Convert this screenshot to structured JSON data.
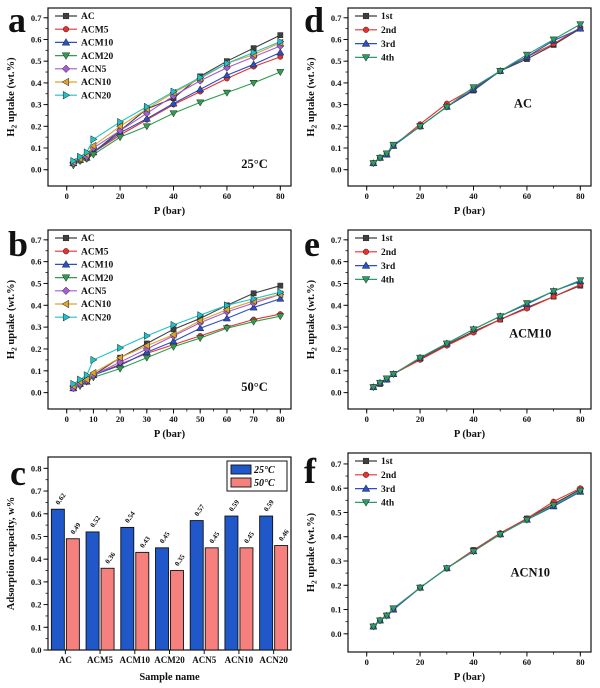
{
  "figure_name": "hydrogen-uptake-figure",
  "chart_data": [
    {
      "type": "line",
      "letter": "a",
      "xlabel": "P (bar)",
      "ylabel": [
        {
          "t": "H"
        },
        {
          "t": "2",
          "sub": true
        },
        {
          "t": " uptake (wt.%)"
        }
      ],
      "annotation": "25°C",
      "annotation_pos": [
        0.85,
        0.9
      ],
      "xlim": [
        -7,
        84
      ],
      "ylim": [
        -0.075,
        0.745
      ],
      "xticks": [
        0,
        20,
        40,
        60,
        80
      ],
      "yticks": [
        0.0,
        0.1,
        0.2,
        0.3,
        0.4,
        0.5,
        0.6,
        0.7
      ],
      "x_minor": 10,
      "y_minor": 0.05,
      "legend_pos": "top-left",
      "x": [
        2.5,
        5,
        7.5,
        10,
        20,
        30,
        40,
        50,
        60,
        70,
        80
      ],
      "series": [
        {
          "name": "AC",
          "color": "#3f3f3f",
          "marker": "square",
          "values": [
            0.03,
            0.05,
            0.06,
            0.08,
            0.18,
            0.28,
            0.33,
            0.43,
            0.5,
            0.56,
            0.62
          ]
        },
        {
          "name": "ACM5",
          "color": "#e8312e",
          "marker": "circle",
          "values": [
            0.03,
            0.04,
            0.05,
            0.08,
            0.16,
            0.23,
            0.3,
            0.36,
            0.42,
            0.475,
            0.52
          ]
        },
        {
          "name": "ACM10",
          "color": "#2b4fc8",
          "marker": "triangle-up",
          "values": [
            0.03,
            0.045,
            0.055,
            0.08,
            0.17,
            0.235,
            0.305,
            0.37,
            0.435,
            0.485,
            0.54
          ]
        },
        {
          "name": "ACM20",
          "color": "#2f9e4f",
          "marker": "triangle-down",
          "values": [
            0.02,
            0.04,
            0.05,
            0.07,
            0.15,
            0.2,
            0.26,
            0.31,
            0.355,
            0.4,
            0.45
          ]
        },
        {
          "name": "ACN5",
          "color": "#a55cd5",
          "marker": "diamond",
          "values": [
            0.03,
            0.05,
            0.06,
            0.1,
            0.18,
            0.26,
            0.34,
            0.41,
            0.47,
            0.52,
            0.57
          ]
        },
        {
          "name": "ACN10",
          "color": "#e0a32e",
          "marker": "triangle-left",
          "values": [
            0.035,
            0.05,
            0.07,
            0.11,
            0.2,
            0.28,
            0.355,
            0.42,
            0.49,
            0.53,
            0.585
          ]
        },
        {
          "name": "ACN20",
          "color": "#1ec3c9",
          "marker": "triangle-right",
          "values": [
            0.04,
            0.06,
            0.08,
            0.14,
            0.22,
            0.29,
            0.36,
            0.425,
            0.49,
            0.54,
            0.59
          ]
        }
      ]
    },
    {
      "type": "line",
      "letter": "b",
      "xlabel": "P (bar)",
      "ylabel": [
        {
          "t": "H"
        },
        {
          "t": "2",
          "sub": true
        },
        {
          "t": " uptake (wt.%)"
        }
      ],
      "annotation": "50°C",
      "annotation_pos": [
        0.85,
        0.9
      ],
      "xlim": [
        -7,
        84
      ],
      "ylim": [
        -0.075,
        0.745
      ],
      "xticks": [
        0,
        10,
        20,
        30,
        40,
        50,
        60,
        70,
        80
      ],
      "yticks": [
        0.0,
        0.1,
        0.2,
        0.3,
        0.4,
        0.5,
        0.6,
        0.7
      ],
      "x_minor": 5,
      "y_minor": 0.05,
      "legend_pos": "top-left",
      "x": [
        2.5,
        5,
        7.5,
        10,
        20,
        30,
        40,
        50,
        60,
        70,
        80
      ],
      "series": [
        {
          "name": "AC",
          "color": "#3f3f3f",
          "marker": "square",
          "values": [
            0.02,
            0.04,
            0.06,
            0.08,
            0.16,
            0.225,
            0.29,
            0.34,
            0.4,
            0.455,
            0.49
          ]
        },
        {
          "name": "ACM5",
          "color": "#e8312e",
          "marker": "circle",
          "values": [
            0.02,
            0.04,
            0.05,
            0.08,
            0.13,
            0.18,
            0.22,
            0.26,
            0.3,
            0.335,
            0.36
          ]
        },
        {
          "name": "ACM10",
          "color": "#2b4fc8",
          "marker": "triangle-up",
          "values": [
            0.02,
            0.04,
            0.05,
            0.08,
            0.125,
            0.185,
            0.235,
            0.295,
            0.34,
            0.39,
            0.43
          ]
        },
        {
          "name": "ACM20",
          "color": "#2f9e4f",
          "marker": "triangle-down",
          "values": [
            0.02,
            0.03,
            0.05,
            0.07,
            0.11,
            0.16,
            0.21,
            0.25,
            0.295,
            0.325,
            0.35
          ]
        },
        {
          "name": "ACN5",
          "color": "#a55cd5",
          "marker": "diamond",
          "values": [
            0.02,
            0.04,
            0.055,
            0.08,
            0.14,
            0.2,
            0.26,
            0.32,
            0.37,
            0.41,
            0.45
          ]
        },
        {
          "name": "ACN10",
          "color": "#e0a32e",
          "marker": "triangle-left",
          "values": [
            0.03,
            0.05,
            0.06,
            0.09,
            0.16,
            0.215,
            0.265,
            0.33,
            0.38,
            0.42,
            0.45
          ]
        },
        {
          "name": "ACN20",
          "color": "#1ec3c9",
          "marker": "triangle-right",
          "values": [
            0.04,
            0.06,
            0.08,
            0.15,
            0.205,
            0.26,
            0.31,
            0.355,
            0.4,
            0.43,
            0.46
          ]
        }
      ]
    },
    {
      "type": "bar",
      "letter": "c",
      "xlabel": "Sample name",
      "ylabel": [
        {
          "t": "Adsorption capacity, w%"
        }
      ],
      "ylim": [
        0,
        0.85
      ],
      "yticks": [
        0.0,
        0.1,
        0.2,
        0.3,
        0.4,
        0.5,
        0.6,
        0.7,
        0.8
      ],
      "y_minor": 0.05,
      "legend_pos": "top-right",
      "categories": [
        "AC",
        "ACM5",
        "ACM10",
        "ACM20",
        "ACN5",
        "ACN10",
        "ACN20"
      ],
      "series": [
        {
          "name": "25°C",
          "color": "#2057c9",
          "values": [
            0.62,
            0.52,
            0.54,
            0.45,
            0.57,
            0.59,
            0.59
          ]
        },
        {
          "name": "50°C",
          "color": "#f5807d",
          "values": [
            0.49,
            0.36,
            0.43,
            0.35,
            0.45,
            0.45,
            0.46
          ]
        }
      ]
    },
    {
      "type": "line",
      "letter": "d",
      "xlabel": "P (bar)",
      "ylabel": [
        {
          "t": "H"
        },
        {
          "t": "2",
          "sub": true
        },
        {
          "t": " uptake (wt.%)"
        }
      ],
      "annotation": "AC",
      "annotation_pos": [
        0.72,
        0.56
      ],
      "xlim": [
        -7,
        84
      ],
      "ylim": [
        -0.075,
        0.745
      ],
      "xticks": [
        0,
        20,
        40,
        60,
        80
      ],
      "yticks": [
        0.0,
        0.1,
        0.2,
        0.3,
        0.4,
        0.5,
        0.6,
        0.7
      ],
      "x_minor": 10,
      "y_minor": 0.05,
      "legend_pos": "top-left",
      "x": [
        2.5,
        5,
        7.5,
        10,
        20,
        30,
        40,
        50,
        60,
        70,
        80
      ],
      "series": [
        {
          "name": "1st",
          "color": "#3f3f3f",
          "marker": "square",
          "values": [
            0.03,
            0.055,
            0.07,
            0.11,
            0.2,
            0.29,
            0.365,
            0.455,
            0.51,
            0.575,
            0.65
          ]
        },
        {
          "name": "2nd",
          "color": "#e8312e",
          "marker": "circle",
          "values": [
            0.03,
            0.055,
            0.07,
            0.11,
            0.21,
            0.305,
            0.375,
            0.455,
            0.52,
            0.58,
            0.655
          ]
        },
        {
          "name": "3rd",
          "color": "#2b4fc8",
          "marker": "triangle-up",
          "values": [
            0.03,
            0.055,
            0.07,
            0.11,
            0.2,
            0.29,
            0.37,
            0.455,
            0.52,
            0.595,
            0.65
          ]
        },
        {
          "name": "4th",
          "color": "#2a9d67",
          "marker": "triangle-down",
          "values": [
            0.03,
            0.055,
            0.075,
            0.115,
            0.2,
            0.29,
            0.38,
            0.455,
            0.53,
            0.6,
            0.67
          ]
        }
      ]
    },
    {
      "type": "line",
      "letter": "e",
      "xlabel": "P (bar)",
      "ylabel": [
        {
          "t": "H"
        },
        {
          "t": "2",
          "sub": true
        },
        {
          "t": " uptake (wt.%)"
        }
      ],
      "annotation": "ACM10",
      "annotation_pos": [
        0.75,
        0.6
      ],
      "xlim": [
        -7,
        84
      ],
      "ylim": [
        -0.075,
        0.745
      ],
      "xticks": [
        0,
        20,
        40,
        60,
        80
      ],
      "yticks": [
        0.0,
        0.1,
        0.2,
        0.3,
        0.4,
        0.5,
        0.6,
        0.7
      ],
      "x_minor": 10,
      "y_minor": 0.05,
      "legend_pos": "top-left",
      "x": [
        2.5,
        5,
        7.5,
        10,
        20,
        30,
        40,
        50,
        60,
        70,
        80
      ],
      "series": [
        {
          "name": "1st",
          "color": "#3f3f3f",
          "marker": "square",
          "values": [
            0.025,
            0.04,
            0.06,
            0.085,
            0.155,
            0.22,
            0.28,
            0.335,
            0.39,
            0.44,
            0.49
          ]
        },
        {
          "name": "2nd",
          "color": "#e8312e",
          "marker": "circle",
          "values": [
            0.025,
            0.04,
            0.06,
            0.085,
            0.15,
            0.215,
            0.275,
            0.335,
            0.385,
            0.44,
            0.495
          ]
        },
        {
          "name": "3rd",
          "color": "#2b4fc8",
          "marker": "triangle-up",
          "values": [
            0.025,
            0.045,
            0.06,
            0.085,
            0.16,
            0.225,
            0.29,
            0.35,
            0.405,
            0.465,
            0.51
          ]
        },
        {
          "name": "4th",
          "color": "#2a9d67",
          "marker": "triangle-down",
          "values": [
            0.025,
            0.045,
            0.065,
            0.085,
            0.16,
            0.225,
            0.29,
            0.35,
            0.41,
            0.465,
            0.515
          ]
        }
      ]
    },
    {
      "type": "line",
      "letter": "f",
      "xlabel": "P (bar)",
      "ylabel": [
        {
          "t": "H"
        },
        {
          "t": "2",
          "sub": true
        },
        {
          "t": " uptake (wt.%)"
        }
      ],
      "annotation": "ACN10",
      "annotation_pos": [
        0.75,
        0.62
      ],
      "xlim": [
        -7,
        84
      ],
      "ylim": [
        -0.075,
        0.745
      ],
      "xticks": [
        0,
        20,
        40,
        60,
        80
      ],
      "yticks": [
        0.0,
        0.1,
        0.2,
        0.3,
        0.4,
        0.5,
        0.6,
        0.7
      ],
      "x_minor": 10,
      "y_minor": 0.05,
      "legend_pos": "top-left",
      "x": [
        2.5,
        5,
        7.5,
        10,
        20,
        30,
        40,
        50,
        60,
        70,
        80
      ],
      "series": [
        {
          "name": "1st",
          "color": "#3f3f3f",
          "marker": "square",
          "values": [
            0.03,
            0.055,
            0.075,
            0.1,
            0.19,
            0.27,
            0.345,
            0.41,
            0.475,
            0.535,
            0.595
          ]
        },
        {
          "name": "2nd",
          "color": "#e8312e",
          "marker": "circle",
          "values": [
            0.03,
            0.055,
            0.075,
            0.1,
            0.19,
            0.27,
            0.345,
            0.415,
            0.475,
            0.545,
            0.6
          ]
        },
        {
          "name": "3rd",
          "color": "#2b4fc8",
          "marker": "triangle-up",
          "values": [
            0.03,
            0.055,
            0.075,
            0.1,
            0.19,
            0.27,
            0.34,
            0.41,
            0.47,
            0.525,
            0.585
          ]
        },
        {
          "name": "4th",
          "color": "#2a9d67",
          "marker": "triangle-down",
          "values": [
            0.03,
            0.055,
            0.075,
            0.105,
            0.19,
            0.27,
            0.34,
            0.41,
            0.47,
            0.53,
            0.59
          ]
        }
      ]
    }
  ]
}
